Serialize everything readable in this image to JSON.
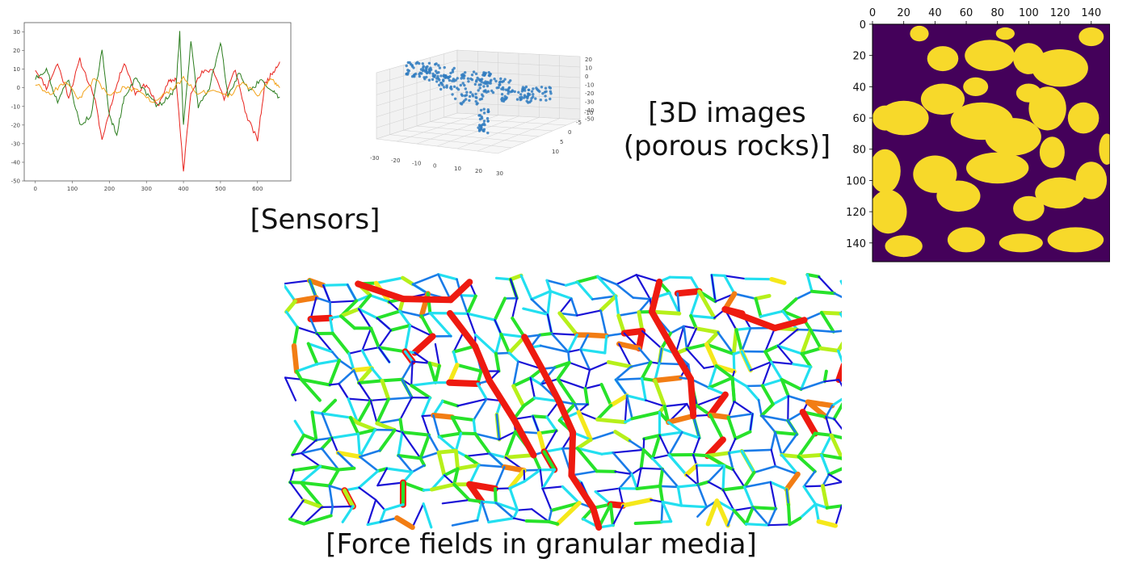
{
  "captions": {
    "sensors": "[Sensors]",
    "images3d": "[3D images\n(porous rocks)]",
    "forces": "[Force fields in granular media]"
  },
  "chart_data": [
    {
      "type": "line",
      "x_ticks": [
        "0",
        "100",
        "200",
        "300",
        "400",
        "500",
        "600"
      ],
      "y_ticks": [
        "30",
        "20",
        "10",
        "0",
        "-10",
        "-20",
        "-30",
        "-40",
        "-50"
      ],
      "xlim": [
        -30,
        690
      ],
      "ylim": [
        -50,
        35
      ],
      "series": [
        {
          "color": "#e8231d",
          "x": [
            0,
            30,
            60,
            90,
            120,
            160,
            180,
            210,
            240,
            270,
            300,
            330,
            360,
            380,
            400,
            420,
            450,
            480,
            510,
            540,
            570,
            600,
            620,
            640,
            660
          ],
          "y": [
            10,
            0,
            13,
            -5,
            15,
            -5,
            -28,
            -5,
            14,
            -3,
            2,
            -10,
            3,
            5,
            -45,
            -2,
            8,
            10,
            -6,
            10,
            -15,
            -28,
            2,
            8,
            14
          ]
        },
        {
          "color": "#2b7d1e",
          "x": [
            0,
            30,
            60,
            90,
            120,
            150,
            180,
            200,
            220,
            240,
            270,
            300,
            330,
            360,
            380,
            390,
            400,
            420,
            440,
            470,
            500,
            520,
            550,
            580,
            610,
            640,
            660
          ],
          "y": [
            5,
            10,
            -8,
            5,
            -20,
            -15,
            20,
            -15,
            -25,
            -5,
            5,
            -3,
            -10,
            -5,
            0,
            30,
            -20,
            25,
            -10,
            0,
            25,
            -5,
            8,
            -2,
            5,
            -2,
            -5
          ]
        },
        {
          "color": "#f2a31a",
          "x": [
            0,
            40,
            80,
            120,
            160,
            200,
            240,
            280,
            320,
            360,
            400,
            440,
            480,
            520,
            560,
            600,
            640,
            660
          ],
          "y": [
            2,
            -3,
            3,
            -6,
            5,
            -4,
            0,
            -2,
            -8,
            -2,
            5,
            -3,
            -2,
            -5,
            3,
            -4,
            5,
            0
          ]
        }
      ]
    },
    {
      "type": "scatter",
      "x_ticks": [
        "-30",
        "-20",
        "-10",
        "0",
        "10",
        "20",
        "30"
      ],
      "y_ticks": [
        "10",
        "5",
        "0",
        "-5",
        "-10"
      ],
      "z_ticks": [
        "20",
        "10",
        "0",
        "-10",
        "-20",
        "-30",
        "-40",
        "-50"
      ],
      "color": "#2f7bbf"
    },
    {
      "type": "heatmap",
      "x_ticks": [
        "0",
        "20",
        "40",
        "60",
        "80",
        "100",
        "120",
        "140"
      ],
      "y_ticks": [
        "0",
        "20",
        "40",
        "60",
        "80",
        "100",
        "120",
        "140"
      ],
      "xlim": [
        0,
        152
      ],
      "ylim": [
        0,
        152
      ],
      "colors": [
        "#44015a",
        "#f7d92a"
      ]
    }
  ],
  "force_palette": [
    "#1a12d6",
    "#1a7be8",
    "#22dff0",
    "#27e22a",
    "#b6f01a",
    "#f5e81a",
    "#f27d14",
    "#ee1a10"
  ]
}
